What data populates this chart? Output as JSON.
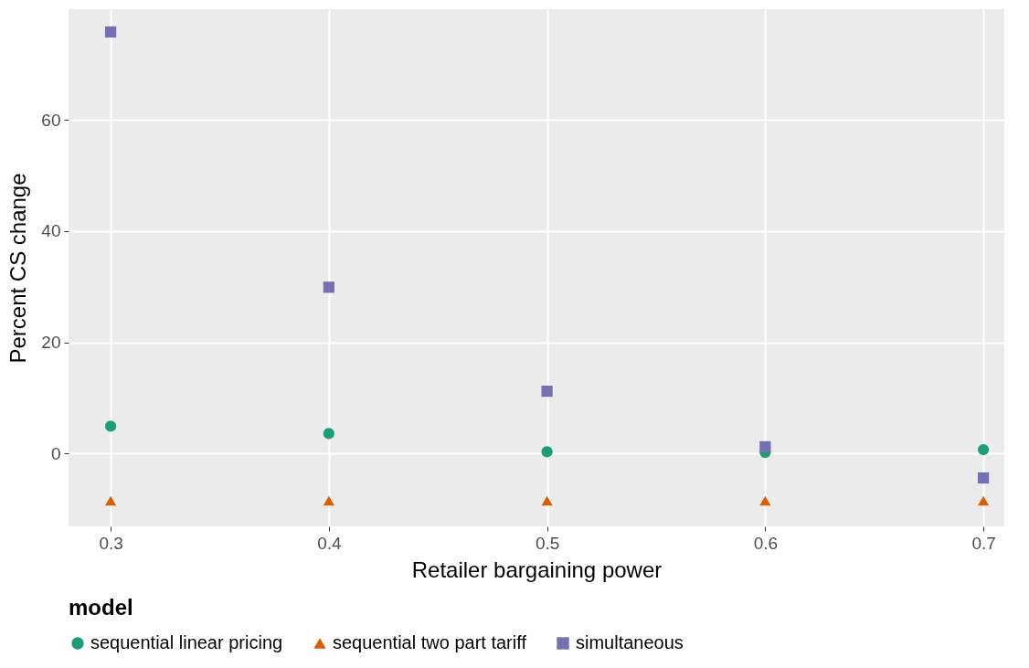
{
  "chart_data": {
    "type": "scatter",
    "xlabel": "Retailer bargaining power",
    "ylabel": "Percent CS change",
    "legend_title": "model",
    "legend": "bottom",
    "grid": true,
    "x": [
      0.3,
      0.4,
      0.5,
      0.6,
      0.7
    ],
    "xlim": [
      0.2807,
      0.7096
    ],
    "xticks": [
      0.3,
      0.4,
      0.5,
      0.6,
      0.7
    ],
    "ylim": [
      -13.1,
      79.9
    ],
    "yticks": [
      0,
      20,
      40,
      60
    ],
    "series": [
      {
        "name": "sequential linear pricing",
        "color": "#1b9e77",
        "marker": "circle",
        "values": [
          4.9,
          3.6,
          0.3,
          0.2,
          0.7
        ]
      },
      {
        "name": "sequential two part tariff",
        "color": "#d95f02",
        "marker": "triangle",
        "values": [
          -8.5,
          -8.5,
          -8.5,
          -8.5,
          -8.5
        ]
      },
      {
        "name": "simultaneous",
        "color": "#7570b3",
        "marker": "square",
        "values": [
          75.8,
          29.9,
          11.2,
          1.2,
          -4.4
        ]
      }
    ]
  }
}
